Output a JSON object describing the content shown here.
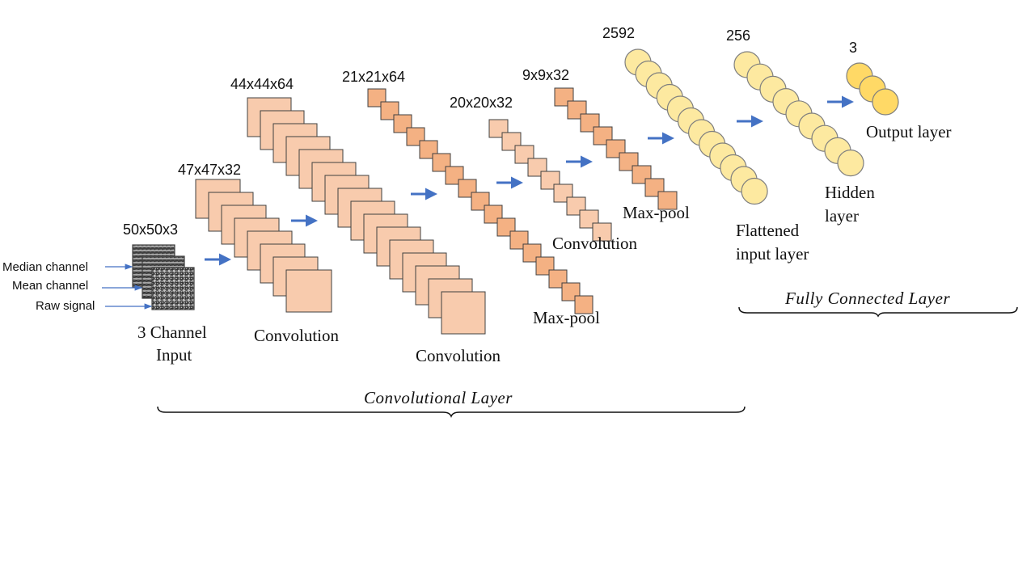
{
  "input": {
    "dimension": "50x50x3",
    "caption_line1": "3 Channel",
    "caption_line2": "Input",
    "channels": [
      "Median channel",
      "Mean channel",
      "Raw signal"
    ]
  },
  "conv1": {
    "dimension": "47x47x32",
    "caption": "Convolution"
  },
  "conv2": {
    "dimension": "44x44x64",
    "caption": "Convolution"
  },
  "pool1": {
    "dimension": "21x21x64",
    "caption": "Max-pool"
  },
  "conv3": {
    "dimension": "20x20x32",
    "caption": "Convolution"
  },
  "pool2": {
    "dimension": "9x9x32",
    "caption": "Max-pool"
  },
  "flatten": {
    "count": "2592",
    "caption_line1": "Flattened",
    "caption_line2": "input layer"
  },
  "hidden": {
    "count": "256",
    "caption_line1": "Hidden",
    "caption_line2": "layer"
  },
  "output": {
    "count": "3",
    "caption": "Output layer"
  },
  "sections": {
    "convolutional": "Convolutional Layer",
    "fully_connected": "Fully Connected Layer"
  },
  "colors": {
    "feature_map_light": "#f8cbad",
    "feature_map_dark": "#f4b183",
    "neuron_fill": "#fde9a0",
    "output_neuron_fill": "#ffd966",
    "neuron_stroke": "#7f7f7f",
    "arrow": "#4472c4",
    "map_stroke": "#404040"
  }
}
